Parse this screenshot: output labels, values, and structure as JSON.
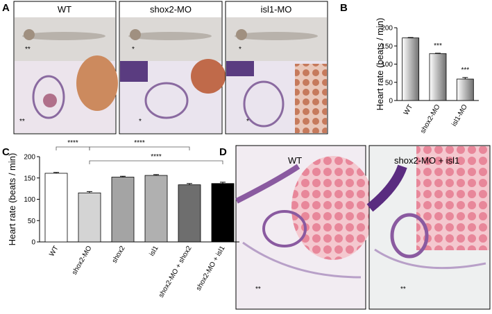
{
  "panel_labels": [
    "A",
    "B",
    "C",
    "D"
  ],
  "panel_a": {
    "labels": [
      "WT",
      "shox2-MO",
      "isl1-MO"
    ],
    "embryo_marks": [
      "**",
      "*",
      "*"
    ],
    "section_marks": [
      "**",
      "*",
      "*"
    ]
  },
  "panel_d": {
    "labels": [
      "WT",
      "shox2-MO + isl1"
    ],
    "marks": [
      "**",
      "**"
    ]
  },
  "chart_data": [
    {
      "type": "bar",
      "ylabel": "Heart rate (beats /  min)",
      "categories": [
        "WT",
        "shox2-MO",
        "isl1-MO"
      ],
      "values": [
        172,
        129,
        59
      ],
      "errors": [
        1,
        1,
        4
      ],
      "color": "#707070",
      "ylim": [
        0,
        200
      ],
      "yticks": [
        0,
        50,
        100,
        150,
        200
      ],
      "annotations": [
        {
          "category": "shox2-MO",
          "text": "***"
        },
        {
          "category": "isl1-MO",
          "text": "***"
        }
      ]
    },
    {
      "type": "bar",
      "ylabel": "Heart rate (beats / min)",
      "categories": [
        "WT",
        "shox2-MO",
        "shox2",
        "isl1",
        "shox2-MO + shox2",
        "shox2-MO + isl1"
      ],
      "values": [
        161,
        115,
        152,
        156,
        134,
        137
      ],
      "errors": [
        2,
        3,
        2,
        2,
        3,
        3
      ],
      "colors": [
        "#ffffff",
        "#d4d4d4",
        "#a4a4a4",
        "#b0b0b0",
        "#6e6e6e",
        "#000000"
      ],
      "ylim": [
        0,
        200
      ],
      "yticks": [
        0,
        50,
        100,
        150,
        200
      ],
      "brackets": [
        {
          "from": "WT",
          "to": "shox2-MO",
          "text": "****"
        },
        {
          "from": "shox2-MO",
          "to": "shox2-MO + shox2",
          "text": "****"
        },
        {
          "from": "shox2-MO",
          "to": "shox2-MO + isl1",
          "text": "****"
        }
      ]
    }
  ]
}
